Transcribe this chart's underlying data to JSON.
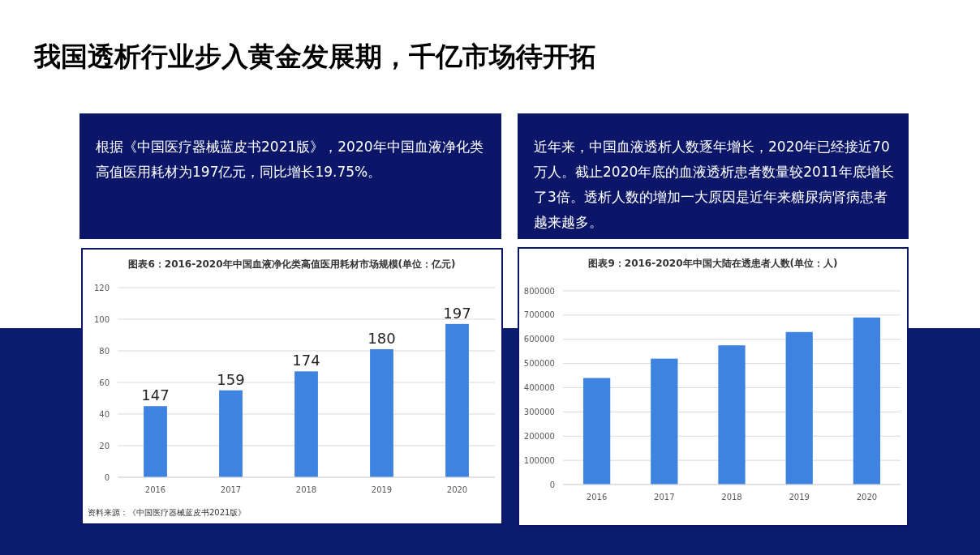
{
  "chart_data": [
    {
      "type": "other",
      "title": "我国透析行业步入黄金发展期，千亿市场待开拓",
      "annotations": [
        "根据《中国医疗器械蓝皮书2021版》，2020年中国血液净化类高值医用耗材为197亿元，同比增长19.75%。",
        "近年来，中国血液透析人数逐年增长，2020年已经接近70万人。截止2020年底的血液透析患者数量较2011年底增长了3倍。透析人数的增加一大原因是近年来糖尿病肾病患者越来越多。"
      ]
    },
    {
      "type": "bar",
      "title": "图表6：2016-2020年中国血液净化类高值医用耗材市场规模(单位：亿元)",
      "categories": [
        "2016",
        "2017",
        "2018",
        "2019",
        "2020"
      ],
      "values": [
        45,
        55,
        67,
        81,
        97
      ],
      "color": "#3f83e0",
      "ylim": [
        0,
        120
      ],
      "yticks": [
        0,
        20,
        40,
        60,
        80,
        100,
        120
      ],
      "grid": "y",
      "annotations": [
        {
          "text": "147",
          "x": "2016",
          "y": 45
        },
        {
          "text": "159",
          "x": "2017",
          "y": 55
        },
        {
          "text": "174",
          "x": "2018",
          "y": 67
        },
        {
          "text": "180",
          "x": "2019",
          "y": 81
        },
        {
          "text": "197",
          "x": "2020",
          "y": 97
        },
        "资料来源：《中国医疗器械蓝皮书2021版》"
      ]
    },
    {
      "type": "bar",
      "title": "图表9：2016-2020年中国大陆在透患者人数(单位：人)",
      "categories": [
        "2016",
        "2017",
        "2018",
        "2019",
        "2020"
      ],
      "values": [
        440000,
        520000,
        575000,
        630000,
        690000
      ],
      "color": "#3f83e0",
      "ylim": [
        0,
        800000
      ],
      "yticks": [
        0,
        100000,
        200000,
        300000,
        400000,
        500000,
        600000,
        700000,
        800000
      ],
      "grid": "y"
    }
  ]
}
